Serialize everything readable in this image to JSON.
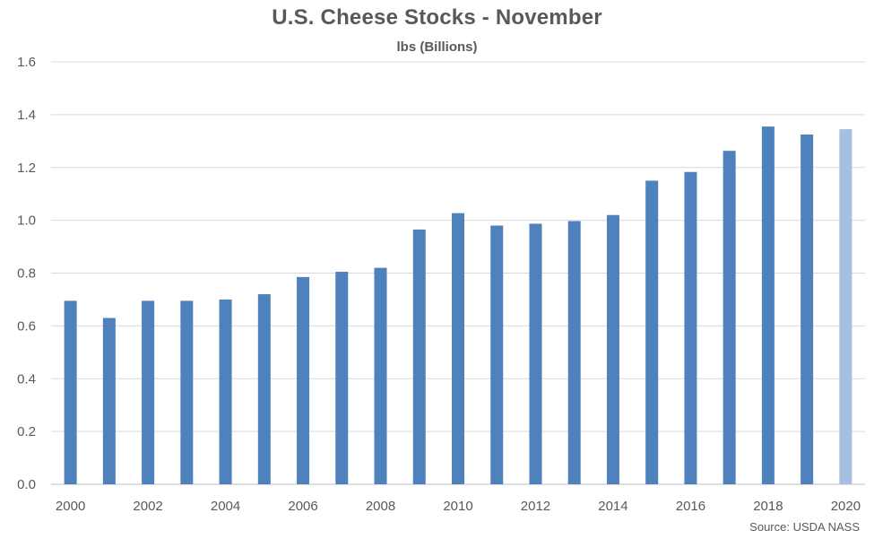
{
  "chart_data": {
    "type": "bar",
    "title": "U.S. Cheese Stocks - November",
    "subtitle": "lbs (Billions)",
    "source": "Source: USDA NASS",
    "xlabel": "",
    "ylabel": "",
    "ylim": [
      0,
      1.6
    ],
    "yticks": [
      "0.0",
      "0.2",
      "0.4",
      "0.6",
      "0.8",
      "1.0",
      "1.2",
      "1.4",
      "1.6"
    ],
    "xtick_labels": [
      "2000",
      "2002",
      "2004",
      "2006",
      "2008",
      "2010",
      "2012",
      "2014",
      "2016",
      "2018",
      "2020"
    ],
    "grid": true,
    "categories": [
      "2000",
      "2001",
      "2002",
      "2003",
      "2004",
      "2005",
      "2006",
      "2007",
      "2008",
      "2009",
      "2010",
      "2011",
      "2012",
      "2013",
      "2014",
      "2015",
      "2016",
      "2017",
      "2018",
      "2019",
      "2020"
    ],
    "values": [
      0.695,
      0.63,
      0.695,
      0.695,
      0.7,
      0.72,
      0.785,
      0.805,
      0.82,
      0.965,
      1.027,
      0.98,
      0.987,
      0.997,
      1.02,
      1.15,
      1.183,
      1.263,
      1.355,
      1.325,
      1.345
    ],
    "colors": {
      "bar": "#4f81bd",
      "highlight_bar": "#a7bfdf",
      "gridline": "#d9d9d9",
      "axis_line": "#bfbfbf",
      "text": "#595959"
    },
    "highlight_index": 20
  }
}
